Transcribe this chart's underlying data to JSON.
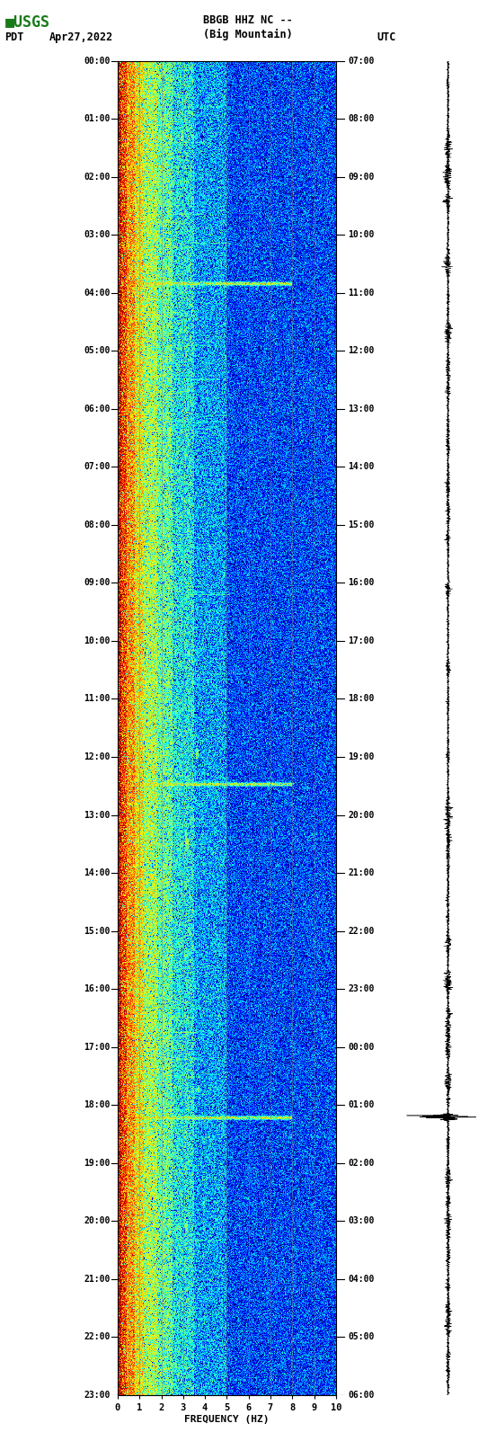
{
  "title_line1": "BBGB HHZ NC --",
  "title_line2": "(Big Mountain)",
  "left_label": "PDT",
  "date_label": "Apr27,2022",
  "right_label": "UTC",
  "xlabel": "FREQUENCY (HZ)",
  "left_yticks": [
    "00:00",
    "01:00",
    "02:00",
    "03:00",
    "04:00",
    "05:00",
    "06:00",
    "07:00",
    "08:00",
    "09:00",
    "10:00",
    "11:00",
    "12:00",
    "13:00",
    "14:00",
    "15:00",
    "16:00",
    "17:00",
    "18:00",
    "19:00",
    "20:00",
    "21:00",
    "22:00",
    "23:00"
  ],
  "right_yticks": [
    "07:00",
    "08:00",
    "09:00",
    "10:00",
    "11:00",
    "12:00",
    "13:00",
    "14:00",
    "15:00",
    "16:00",
    "17:00",
    "18:00",
    "19:00",
    "20:00",
    "21:00",
    "22:00",
    "23:00",
    "00:00",
    "01:00",
    "02:00",
    "03:00",
    "04:00",
    "05:00",
    "06:00"
  ],
  "xlim": [
    0,
    10
  ],
  "xticks": [
    0,
    1,
    2,
    3,
    4,
    5,
    6,
    7,
    8,
    9,
    10
  ],
  "fig_width": 5.52,
  "fig_height": 16.13,
  "colormap": "jet",
  "usgs_logo_color": "#1a7a1a",
  "background_color": "#ffffff",
  "waveform_color": "#000000",
  "event_hours_pdt": [
    4.0,
    13.0,
    19.0
  ],
  "n_hours": 24,
  "freq_max": 10.0,
  "n_freq_bins": 300,
  "n_time_bins": 1440,
  "grid_color": "#808080",
  "grid_alpha": 0.6,
  "vline_color": "#808080"
}
